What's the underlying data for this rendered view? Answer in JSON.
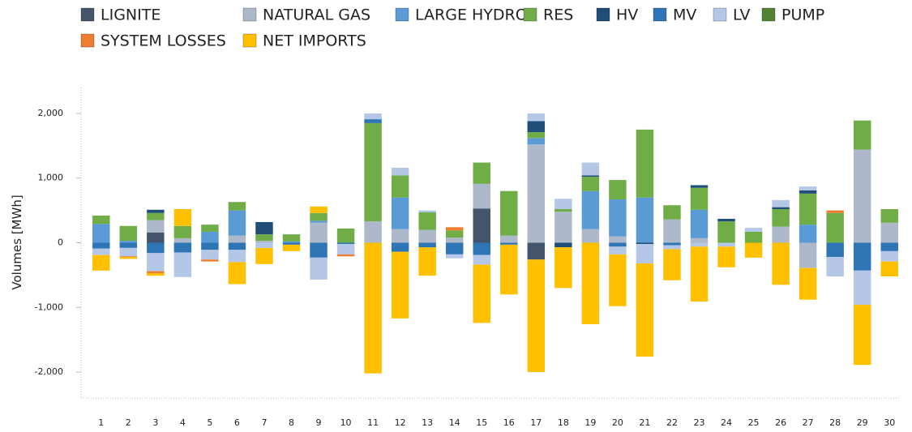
{
  "chart_data": {
    "type": "stacked-bar",
    "y_label": "Volumes [MWh]",
    "categories": [
      "1",
      "2",
      "3",
      "4",
      "5",
      "6",
      "7",
      "8",
      "9",
      "10",
      "11",
      "12",
      "13",
      "14",
      "15",
      "16",
      "17",
      "18",
      "19",
      "20",
      "21",
      "22",
      "23",
      "24",
      "25",
      "26",
      "27",
      "28",
      "29",
      "30"
    ],
    "ylim": [
      -2400,
      2400
    ],
    "yticks": [
      {
        "value": -2000,
        "label": "-2,000"
      },
      {
        "value": -1000,
        "label": "-1,000"
      },
      0,
      {
        "value": 1000,
        "label": "1,000"
      },
      {
        "value": 2000,
        "label": "2,000"
      }
    ],
    "series": [
      {
        "name": "LIGNITE",
        "color": "#44546a",
        "values": [
          0,
          0,
          160,
          0,
          0,
          0,
          0,
          0,
          0,
          0,
          0,
          0,
          0,
          0,
          530,
          0,
          -260,
          0,
          0,
          0,
          0,
          0,
          0,
          0,
          0,
          0,
          0,
          0,
          0,
          0
        ]
      },
      {
        "name": "NATURAL GAS",
        "color": "#adb9ca",
        "values": [
          0,
          0,
          190,
          70,
          0,
          110,
          30,
          0,
          310,
          0,
          330,
          210,
          200,
          80,
          380,
          110,
          1520,
          480,
          210,
          100,
          0,
          360,
          70,
          0,
          0,
          250,
          -390,
          0,
          1440,
          310
        ]
      },
      {
        "name": "LARGE HYDRO",
        "color": "#5b9bd5",
        "values": [
          290,
          30,
          0,
          0,
          170,
          390,
          0,
          20,
          30,
          0,
          0,
          490,
          0,
          0,
          0,
          0,
          100,
          0,
          590,
          570,
          700,
          0,
          440,
          0,
          0,
          0,
          280,
          0,
          0,
          0
        ]
      },
      {
        "name": "RES",
        "color": "#70ad47",
        "values": [
          130,
          230,
          110,
          190,
          110,
          130,
          100,
          110,
          120,
          220,
          1520,
          340,
          270,
          110,
          330,
          690,
          90,
          40,
          220,
          300,
          1050,
          220,
          340,
          330,
          170,
          270,
          480,
          460,
          450,
          210
        ]
      },
      {
        "name": "HV",
        "color": "#1f4e79",
        "values": [
          0,
          0,
          50,
          0,
          0,
          0,
          190,
          0,
          0,
          0,
          0,
          0,
          0,
          0,
          0,
          0,
          170,
          -70,
          20,
          0,
          -20,
          0,
          40,
          40,
          0,
          30,
          50,
          0,
          0,
          0
        ]
      },
      {
        "name": "MV",
        "color": "#2e75b6",
        "values": [
          -90,
          -80,
          -160,
          -150,
          -110,
          -110,
          0,
          -30,
          -230,
          -20,
          60,
          -140,
          -70,
          -180,
          -190,
          -30,
          0,
          0,
          0,
          -60,
          0,
          -40,
          0,
          0,
          0,
          0,
          0,
          -220,
          -430,
          -130
        ]
      },
      {
        "name": "LV",
        "color": "#b4c7e7",
        "values": [
          -100,
          -130,
          -280,
          -380,
          -150,
          -190,
          -80,
          0,
          -340,
          -160,
          90,
          120,
          30,
          -60,
          -150,
          0,
          120,
          160,
          200,
          -120,
          -300,
          -60,
          -60,
          -60,
          60,
          110,
          60,
          -300,
          -530,
          -160
        ]
      },
      {
        "name": "PUMP",
        "color": "#548235",
        "values": [
          0,
          0,
          0,
          0,
          0,
          0,
          0,
          0,
          0,
          0,
          0,
          0,
          0,
          0,
          0,
          0,
          0,
          0,
          0,
          0,
          0,
          0,
          0,
          0,
          0,
          0,
          0,
          0,
          0,
          0
        ]
      },
      {
        "name": "SYSTEM LOSSES",
        "color": "#ed7d31",
        "values": [
          0,
          -10,
          -30,
          0,
          -30,
          0,
          0,
          0,
          0,
          -30,
          0,
          0,
          0,
          50,
          0,
          0,
          0,
          0,
          0,
          0,
          0,
          0,
          0,
          0,
          0,
          0,
          0,
          40,
          0,
          0
        ]
      },
      {
        "name": "NET IMPORTS",
        "color": "#ffc000",
        "values": [
          -240,
          -30,
          -40,
          260,
          0,
          -340,
          -250,
          -100,
          100,
          0,
          -2020,
          -1030,
          -440,
          0,
          -900,
          -770,
          -1740,
          -630,
          -1260,
          -800,
          -1440,
          -480,
          -850,
          -320,
          -230,
          -650,
          -490,
          0,
          -930,
          -230
        ]
      }
    ]
  }
}
